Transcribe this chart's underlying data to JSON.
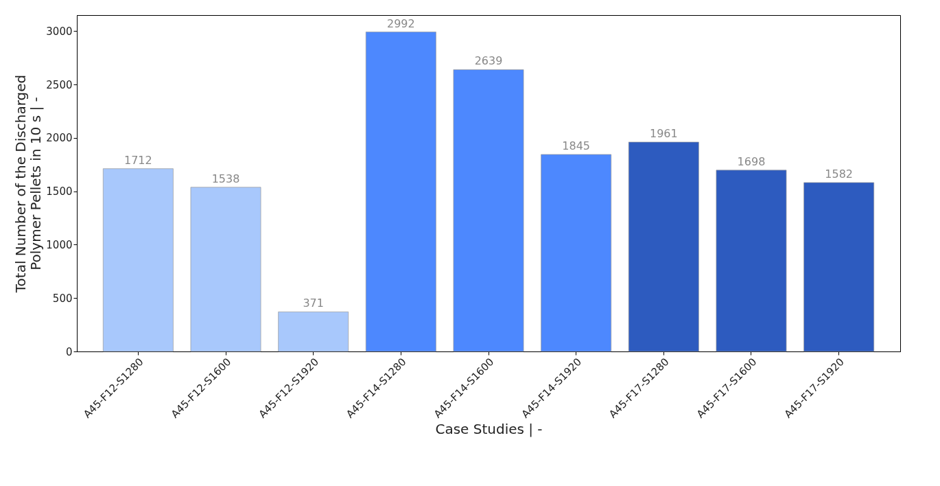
{
  "chart_data": {
    "type": "bar",
    "xlabel": "Case Studies | -",
    "ylabel": "Total Number of the Discharged\nPolymer Pellets in 10 s | -",
    "categories": [
      "A45-F12-S1280",
      "A45-F12-S1600",
      "A45-F12-S1920",
      "A45-F14-S1280",
      "A45-F14-S1600",
      "A45-F14-S1920",
      "A45-F17-S1280",
      "A45-F17-S1600",
      "A45-F17-S1920"
    ],
    "values": [
      1712,
      1538,
      371,
      2992,
      2639,
      1845,
      1961,
      1698,
      1582
    ],
    "colors": [
      "#a8c8fc",
      "#a8c8fc",
      "#a8c8fc",
      "#4d88fe",
      "#4d88fe",
      "#4d88fe",
      "#2d5bbf",
      "#2d5bbf",
      "#2d5bbf"
    ],
    "ylim": [
      0,
      3150
    ],
    "yticks": [
      0,
      500,
      1000,
      1500,
      2000,
      2500,
      3000
    ],
    "grid": false,
    "data_labels": true,
    "legend": false
  }
}
